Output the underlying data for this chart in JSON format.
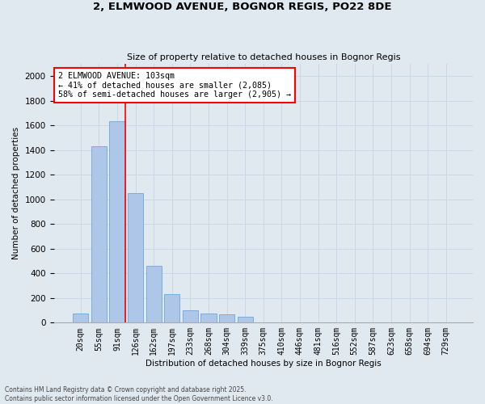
{
  "title_line1": "2, ELMWOOD AVENUE, BOGNOR REGIS, PO22 8DE",
  "title_line2": "Size of property relative to detached houses in Bognor Regis",
  "xlabel": "Distribution of detached houses by size in Bognor Regis",
  "ylabel": "Number of detached properties",
  "bins": [
    "20sqm",
    "55sqm",
    "91sqm",
    "126sqm",
    "162sqm",
    "197sqm",
    "233sqm",
    "268sqm",
    "304sqm",
    "339sqm",
    "375sqm",
    "410sqm",
    "446sqm",
    "481sqm",
    "516sqm",
    "552sqm",
    "587sqm",
    "623sqm",
    "658sqm",
    "694sqm",
    "729sqm"
  ],
  "values": [
    75,
    1430,
    1635,
    1050,
    460,
    230,
    100,
    75,
    65,
    50,
    0,
    0,
    0,
    0,
    0,
    0,
    0,
    0,
    0,
    0,
    0
  ],
  "bar_color": "#aec6e8",
  "bar_edge_color": "#7aaddb",
  "grid_color": "#c8d8e8",
  "background_color": "#e0e8f0",
  "red_line_bin_index": 2,
  "annotation_text": "2 ELMWOOD AVENUE: 103sqm\n← 41% of detached houses are smaller (2,085)\n58% of semi-detached houses are larger (2,905) →",
  "annotation_box_color": "white",
  "annotation_box_edge_color": "red",
  "red_line_color": "red",
  "ylim": [
    0,
    2100
  ],
  "yticks": [
    0,
    200,
    400,
    600,
    800,
    1000,
    1200,
    1400,
    1600,
    1800,
    2000
  ],
  "footer_line1": "Contains HM Land Registry data © Crown copyright and database right 2025.",
  "footer_line2": "Contains public sector information licensed under the Open Government Licence v3.0."
}
